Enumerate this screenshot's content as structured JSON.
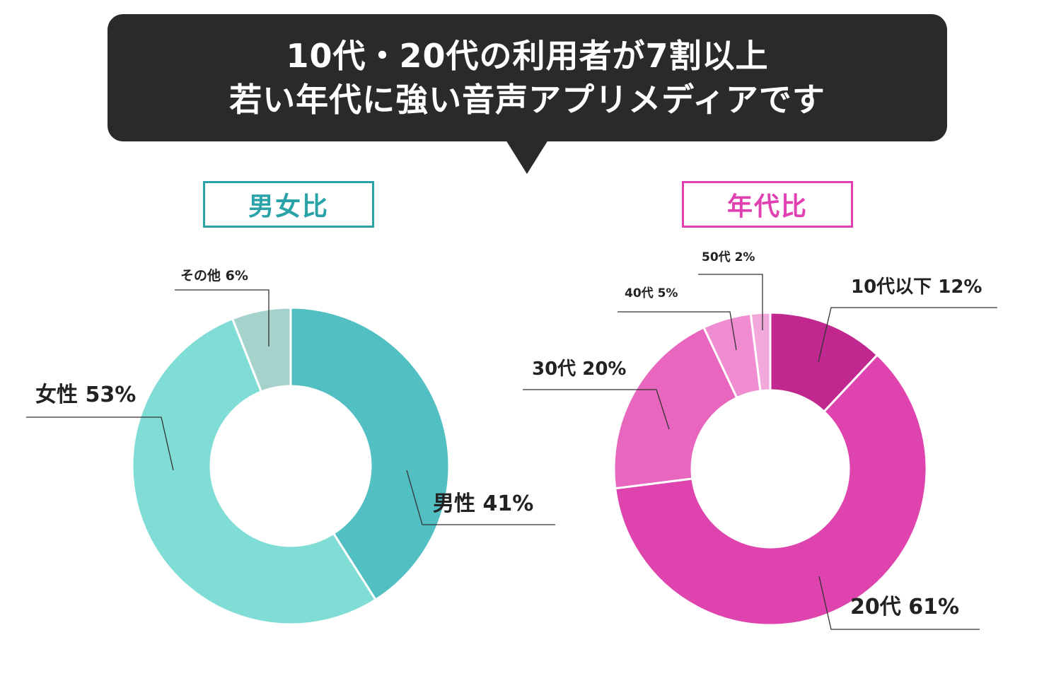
{
  "headline": {
    "line1": "10代・20代の利用者が7割以上",
    "line2": "若い年代に強い音声アプリメディアです"
  },
  "colors": {
    "banner_bg": "#2a2a2a",
    "gender_accent": "#2aa3a8",
    "age_accent": "#e040b0"
  },
  "chart_data": [
    {
      "type": "pie",
      "variant": "donut",
      "title": "男女比",
      "slices": [
        {
          "label": "男性 41%",
          "value": 41,
          "color": "#52bfc2"
        },
        {
          "label": "女性 53%",
          "value": 53,
          "color": "#80ddd6"
        },
        {
          "label": "その他 6%",
          "value": 6,
          "color": "#a5d3cc"
        }
      ]
    },
    {
      "type": "pie",
      "variant": "donut",
      "title": "年代比",
      "slices": [
        {
          "label": "10代以下 12%",
          "value": 12,
          "color": "#c0278f"
        },
        {
          "label": "20代 61%",
          "value": 61,
          "color": "#df43ae"
        },
        {
          "label": "30代 20%",
          "value": 20,
          "color": "#e966be"
        },
        {
          "label": "40代 5%",
          "value": 5,
          "color": "#ef8dd0"
        },
        {
          "label": "50代 2%",
          "value": 2,
          "color": "#f3a8dc"
        }
      ]
    }
  ]
}
